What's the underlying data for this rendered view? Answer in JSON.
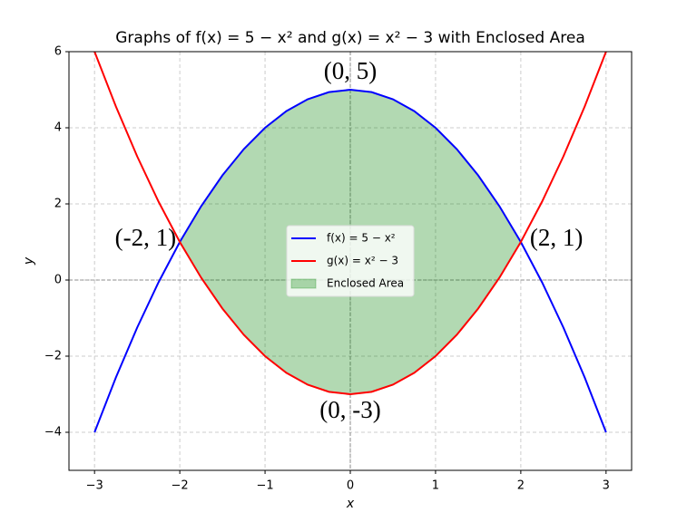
{
  "chart_data": {
    "type": "line",
    "title": "Graphs of f(x) = 5 − x² and g(x) = x² − 3 with Enclosed Area",
    "x_label": "x",
    "y_label": "y",
    "x": [
      -3,
      -2.75,
      -2.5,
      -2.25,
      -2,
      -1.75,
      -1.5,
      -1.25,
      -1,
      -0.75,
      -0.5,
      -0.25,
      0,
      0.25,
      0.5,
      0.75,
      1,
      1.25,
      1.5,
      1.75,
      2,
      2.25,
      2.5,
      2.75,
      3
    ],
    "series": [
      {
        "name": "f(x) = 5 − x²",
        "color": "#0000ff",
        "values": [
          -4,
          -2.5625,
          -1.25,
          -0.0625,
          1,
          1.9375,
          2.75,
          3.4375,
          4,
          4.4375,
          4.75,
          4.9375,
          5,
          4.9375,
          4.75,
          4.4375,
          4,
          3.4375,
          2.75,
          1.9375,
          1,
          -0.0625,
          -1.25,
          -2.5625,
          -4
        ]
      },
      {
        "name": "g(x) = x² − 3",
        "color": "#ff0000",
        "values": [
          6,
          4.5625,
          3.25,
          2.0625,
          1,
          0.0625,
          -0.75,
          -1.4375,
          -2,
          -2.4375,
          -2.75,
          -2.9375,
          -3,
          -2.9375,
          -2.75,
          -2.4375,
          -2,
          -1.4375,
          -0.75,
          0.0625,
          1,
          2.0625,
          3.25,
          4.5625,
          6
        ]
      }
    ],
    "fill": {
      "name": "Enclosed Area",
      "color": "#008000",
      "opacity": 0.3,
      "x": [
        -2,
        -1.75,
        -1.5,
        -1.25,
        -1,
        -0.75,
        -0.5,
        -0.25,
        0,
        0.25,
        0.5,
        0.75,
        1,
        1.25,
        1.5,
        1.75,
        2
      ],
      "upper": [
        1,
        1.9375,
        2.75,
        3.4375,
        4,
        4.4375,
        4.75,
        4.9375,
        5,
        4.9375,
        4.75,
        4.4375,
        4,
        3.4375,
        2.75,
        1.9375,
        1
      ],
      "lower": [
        1,
        0.0625,
        -0.75,
        -1.4375,
        -2,
        -2.4375,
        -2.75,
        -2.9375,
        -3,
        -2.9375,
        -2.75,
        -2.4375,
        -2,
        -1.4375,
        -0.75,
        0.0625,
        1
      ]
    },
    "annotations": [
      {
        "text": "(0, 5)",
        "x": 0,
        "y": 5
      },
      {
        "text": "(-2, 1)",
        "x": -2,
        "y": 1
      },
      {
        "text": "(2, 1)",
        "x": 2,
        "y": 1
      },
      {
        "text": "(0, -3)",
        "x": 0,
        "y": -3
      }
    ],
    "xlim": [
      -3.3,
      3.3
    ],
    "ylim": [
      -5,
      6
    ],
    "xticks": [
      {
        "value": -3,
        "label": "−3"
      },
      {
        "value": -2,
        "label": "−2"
      },
      {
        "value": -1,
        "label": "−1"
      },
      0,
      1,
      2,
      3
    ],
    "yticks": [
      {
        "value": -4,
        "label": "−4"
      },
      {
        "value": -2,
        "label": "−2"
      },
      0,
      2,
      4,
      6
    ],
    "reference_lines": {
      "x": 0,
      "y": 0
    },
    "grid": true,
    "legend": "center"
  }
}
